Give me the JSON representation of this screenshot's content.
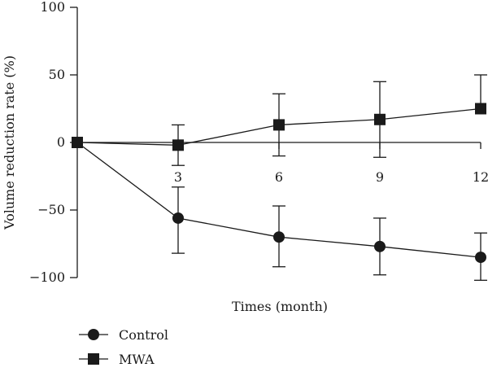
{
  "chart_data": {
    "type": "line",
    "xlabel": "Times (month)",
    "ylabel": "Volume reduction rate (%)",
    "x": [
      0,
      3,
      6,
      9,
      12
    ],
    "x_tick_labels": [
      "3",
      "6",
      "9",
      "12"
    ],
    "y_ticks": [
      -100,
      -50,
      0,
      50,
      100
    ],
    "y_tick_labels": [
      "−100",
      "−50",
      "0",
      "50",
      "100"
    ],
    "ylim": [
      -100,
      100
    ],
    "xlim": [
      0,
      12
    ],
    "series": [
      {
        "name": "Control",
        "marker": "circle",
        "values": [
          0,
          -56,
          -70,
          -77,
          -85
        ],
        "error_upper": [
          0,
          -33,
          -47,
          -56,
          -67
        ],
        "error_lower": [
          0,
          -82,
          -92,
          -98,
          -102
        ]
      },
      {
        "name": "MWA",
        "marker": "square",
        "values": [
          0,
          -2,
          13,
          17,
          25
        ],
        "error_upper": [
          0,
          13,
          36,
          45,
          50
        ],
        "error_lower": [
          0,
          -17,
          -10,
          -11,
          null
        ]
      }
    ],
    "legend_position": "bottom-left",
    "colors": {
      "ink": "#1a1a1a"
    }
  }
}
